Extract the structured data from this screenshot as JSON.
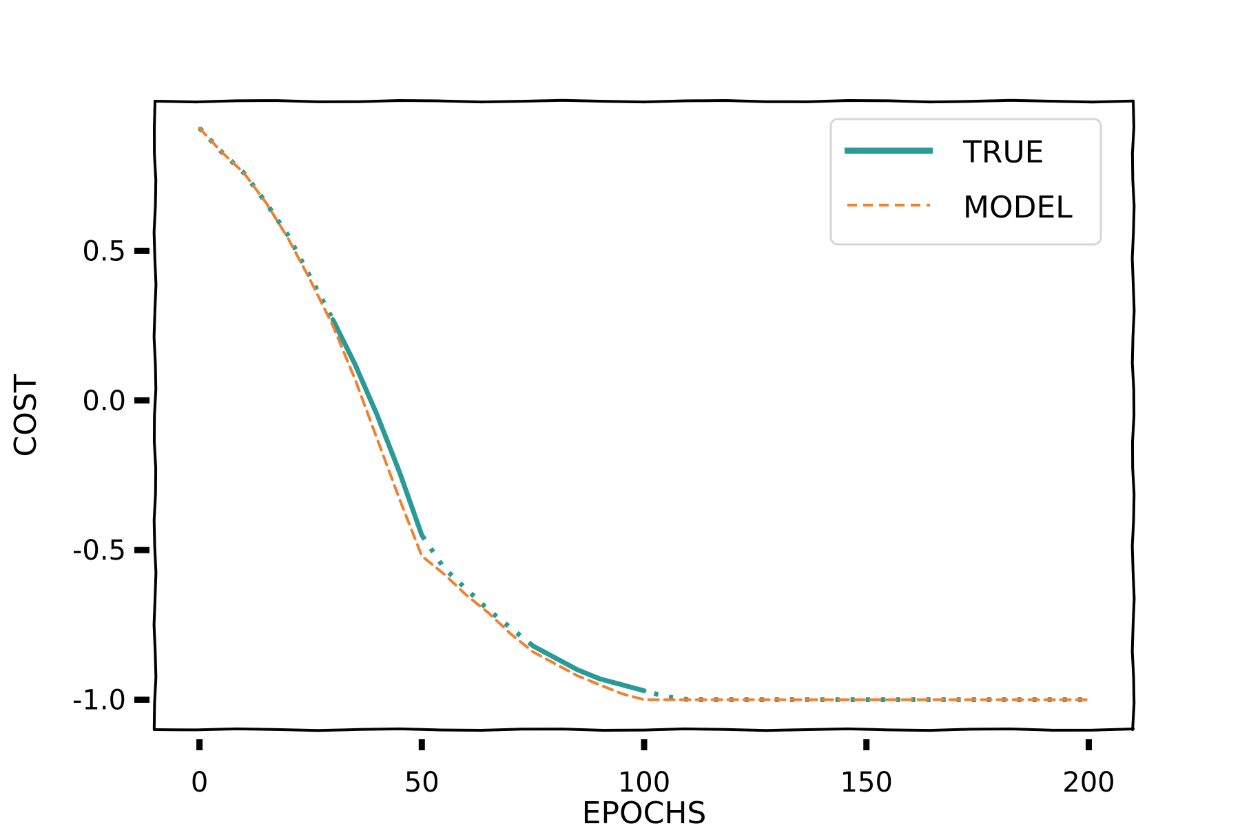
{
  "chart_data": {
    "type": "line",
    "title": "",
    "xlabel": "EPOCHS",
    "ylabel": "COST",
    "xlim": [
      -10,
      210
    ],
    "ylim": [
      -1.1,
      1.0
    ],
    "xticks": [
      0,
      50,
      100,
      150,
      200
    ],
    "xtick_labels": [
      "0",
      "50",
      "100",
      "150",
      "200"
    ],
    "yticks": [
      -1.0,
      -0.5,
      0.0,
      0.5
    ],
    "ytick_labels": [
      "-1.0",
      "-0.5",
      "0.0",
      "0.5"
    ],
    "grid": false,
    "legend_position": "top-right",
    "style": "xkcd",
    "series": [
      {
        "name": "TRUE",
        "color": "#2a9a96",
        "style": "solid, with dotted continuation",
        "x": [
          0,
          5,
          10,
          15,
          20,
          25,
          30,
          35,
          40,
          45,
          50,
          55,
          60,
          65,
          70,
          75,
          80,
          85,
          90,
          95,
          100,
          105,
          110,
          120,
          130,
          140,
          150,
          160,
          170,
          180,
          190,
          200
        ],
        "y": [
          0.91,
          0.83,
          0.76,
          0.66,
          0.55,
          0.41,
          0.27,
          0.12,
          -0.05,
          -0.24,
          -0.45,
          -0.56,
          -0.63,
          -0.7,
          -0.76,
          -0.82,
          -0.86,
          -0.9,
          -0.93,
          -0.95,
          -0.97,
          -0.99,
          -1.0,
          -1.0,
          -1.0,
          -1.0,
          -1.0,
          -1.0,
          -1.0,
          -1.0,
          -1.0,
          -1.0
        ]
      },
      {
        "name": "MODEL",
        "color": "#f08030",
        "style": "dashed",
        "x": [
          0,
          5,
          10,
          15,
          20,
          25,
          30,
          35,
          40,
          45,
          50,
          55,
          60,
          65,
          70,
          75,
          80,
          85,
          90,
          95,
          100,
          105,
          110,
          120,
          130,
          140,
          150,
          160,
          170,
          180,
          190,
          200
        ],
        "y": [
          0.91,
          0.83,
          0.76,
          0.66,
          0.54,
          0.4,
          0.25,
          0.07,
          -0.13,
          -0.33,
          -0.52,
          -0.58,
          -0.65,
          -0.71,
          -0.78,
          -0.84,
          -0.88,
          -0.92,
          -0.95,
          -0.98,
          -1.0,
          -1.0,
          -1.0,
          -1.0,
          -1.0,
          -1.0,
          -1.0,
          -1.0,
          -1.0,
          -1.0,
          -1.0,
          -1.0
        ]
      }
    ]
  }
}
